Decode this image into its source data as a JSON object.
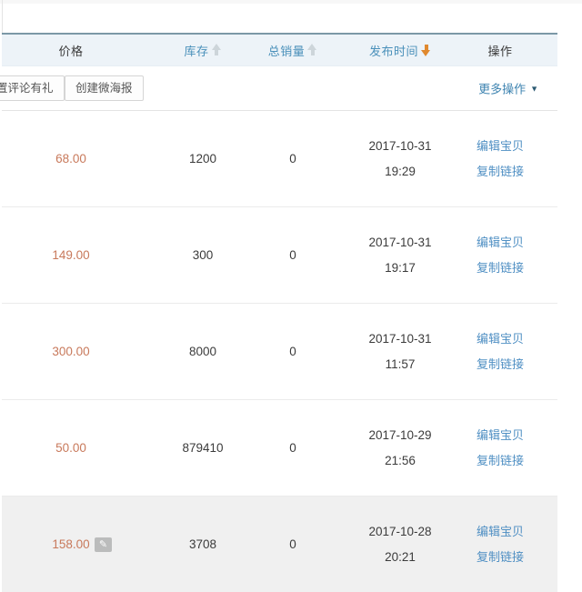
{
  "toolbar": {
    "buttons": [
      {
        "name": "review-reward-button",
        "label": "置评论有礼",
        "clipped": true
      },
      {
        "name": "create-micro-poster-button",
        "label": "创建微海报",
        "clipped": false
      }
    ],
    "more_actions_label": "更多操作"
  },
  "table": {
    "columns": [
      {
        "key": "price",
        "label": "价格",
        "style": "plain",
        "arrow": null
      },
      {
        "key": "stock",
        "label": "库存",
        "style": "link",
        "arrow": "up"
      },
      {
        "key": "sales",
        "label": "总销量",
        "style": "link",
        "arrow": "up"
      },
      {
        "key": "date",
        "label": "发布时间",
        "style": "link",
        "arrow": "down"
      },
      {
        "key": "ops",
        "label": "操作",
        "style": "plain",
        "arrow": null
      }
    ],
    "sort": {
      "active_column": "发布时间",
      "direction": "down"
    },
    "action_labels": [
      "编辑宝贝",
      "复制链接"
    ],
    "rows": [
      {
        "price": "68.00",
        "stock": "1200",
        "sales": "0",
        "date": "2017-10-31",
        "time": "19:29",
        "editable": false,
        "highlighted": false
      },
      {
        "price": "149.00",
        "stock": "300",
        "sales": "0",
        "date": "2017-10-31",
        "time": "19:17",
        "editable": false,
        "highlighted": false
      },
      {
        "price": "300.00",
        "stock": "8000",
        "sales": "0",
        "date": "2017-10-31",
        "time": "11:57",
        "editable": false,
        "highlighted": false
      },
      {
        "price": "50.00",
        "stock": "879410",
        "sales": "0",
        "date": "2017-10-29",
        "time": "21:56",
        "editable": false,
        "highlighted": false
      },
      {
        "price": "158.00",
        "stock": "3708",
        "sales": "0",
        "date": "2017-10-28",
        "time": "20:21",
        "editable": true,
        "highlighted": true
      }
    ]
  },
  "icons": {
    "edit_pencil": "✎",
    "caret_down": "▼",
    "sort_up": "arrow-up",
    "sort_down": "arrow-down"
  },
  "colors": {
    "header_bg": "#edf3f8",
    "top_rule": "#7b98a6",
    "header_link_blue": "#4a90ba",
    "action_link_blue": "#4f8fc3",
    "price_orange": "#c8795b",
    "sort_active_orange": "#e0892f",
    "sort_inactive_gray": "#cdd5da",
    "highlight_row_bg": "#f0f0f0"
  }
}
